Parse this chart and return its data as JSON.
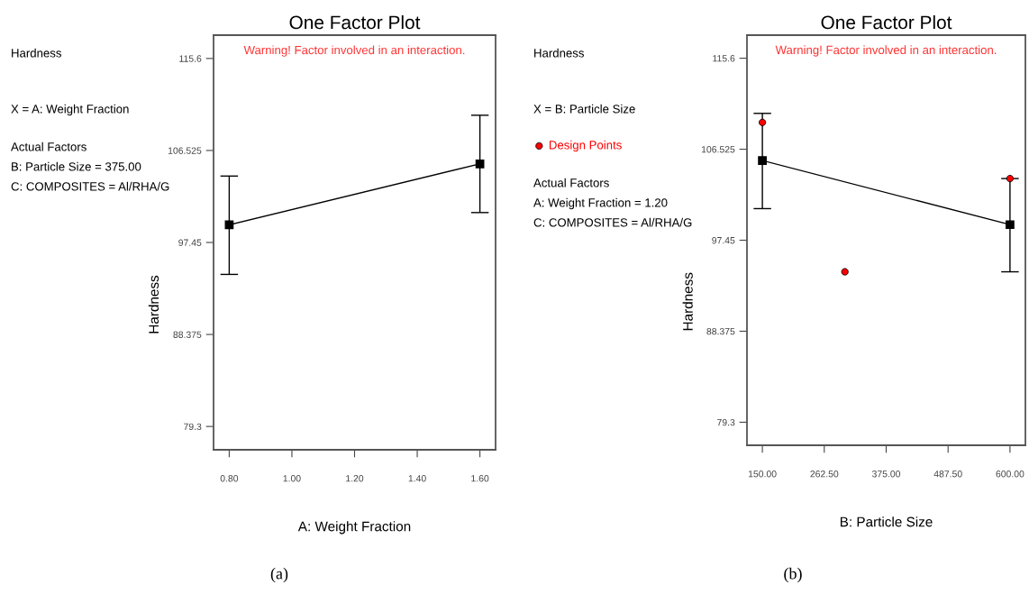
{
  "chart_data": [
    {
      "type": "line",
      "title": "One Factor Plot",
      "xlabel": "A: Weight Fraction",
      "ylabel": "Hardness",
      "annotations": [
        "Warning! Factor involved in an interaction.",
        "Hardness",
        "X = A: Weight Fraction",
        "Actual Factors",
        "B: Particle Size = 375.00",
        "C: COMPOSITES = Al/RHA/G",
        "(a)"
      ],
      "xlim": [
        0.75,
        1.65
      ],
      "xticks": [
        {
          "value": 0.8,
          "label": "0.80"
        },
        {
          "value": 1.0,
          "label": "1.00"
        },
        {
          "value": 1.2,
          "label": "1.20"
        },
        {
          "value": 1.4,
          "label": "1.40"
        },
        {
          "value": 1.6,
          "label": "1.60"
        }
      ],
      "ylim": [
        77.0,
        117.9
      ],
      "yticks": [
        79.3,
        88.375,
        97.45,
        106.525,
        115.6
      ],
      "grid": false,
      "series": [
        {
          "type": "line",
          "color": "#000000",
          "marker": "square",
          "x": [
            0.8,
            1.6
          ],
          "values": [
            99.2,
            105.2
          ],
          "errors": [
            [
              94.3,
              104.0
            ],
            [
              100.4,
              110.0
            ]
          ]
        }
      ]
    },
    {
      "type": "line",
      "title": "One Factor Plot",
      "xlabel": "B: Particle Size",
      "ylabel": "Hardness",
      "annotations": [
        "Warning! Factor involved in an interaction.",
        "Hardness",
        "X = B: Particle Size",
        "Actual Factors",
        "A: Weight Fraction = 1.20",
        "C: COMPOSITES = Al/RHA/G",
        "(b)"
      ],
      "xlim": [
        122,
        628
      ],
      "xticks": [
        {
          "value": 150,
          "label": "150.00"
        },
        {
          "value": 262.5,
          "label": "262.50"
        },
        {
          "value": 375,
          "label": "375.00"
        },
        {
          "value": 487.5,
          "label": "487.50"
        },
        {
          "value": 600,
          "label": "600.00"
        }
      ],
      "ylim": [
        77.0,
        117.9
      ],
      "yticks": [
        79.3,
        88.375,
        97.45,
        106.525,
        115.6
      ],
      "grid": false,
      "legend": "left",
      "series": [
        {
          "type": "line",
          "color": "#000000",
          "marker": "square",
          "x": [
            150,
            600
          ],
          "values": [
            105.4,
            99.0
          ],
          "errors": [
            [
              100.6,
              110.1
            ],
            [
              94.3,
              103.6
            ]
          ]
        },
        {
          "type": "scatter",
          "name": "Design Points",
          "color": "#ff0000",
          "marker": "circle",
          "x": [
            150,
            300,
            600
          ],
          "values": [
            109.2,
            94.3,
            103.6
          ]
        }
      ]
    }
  ]
}
